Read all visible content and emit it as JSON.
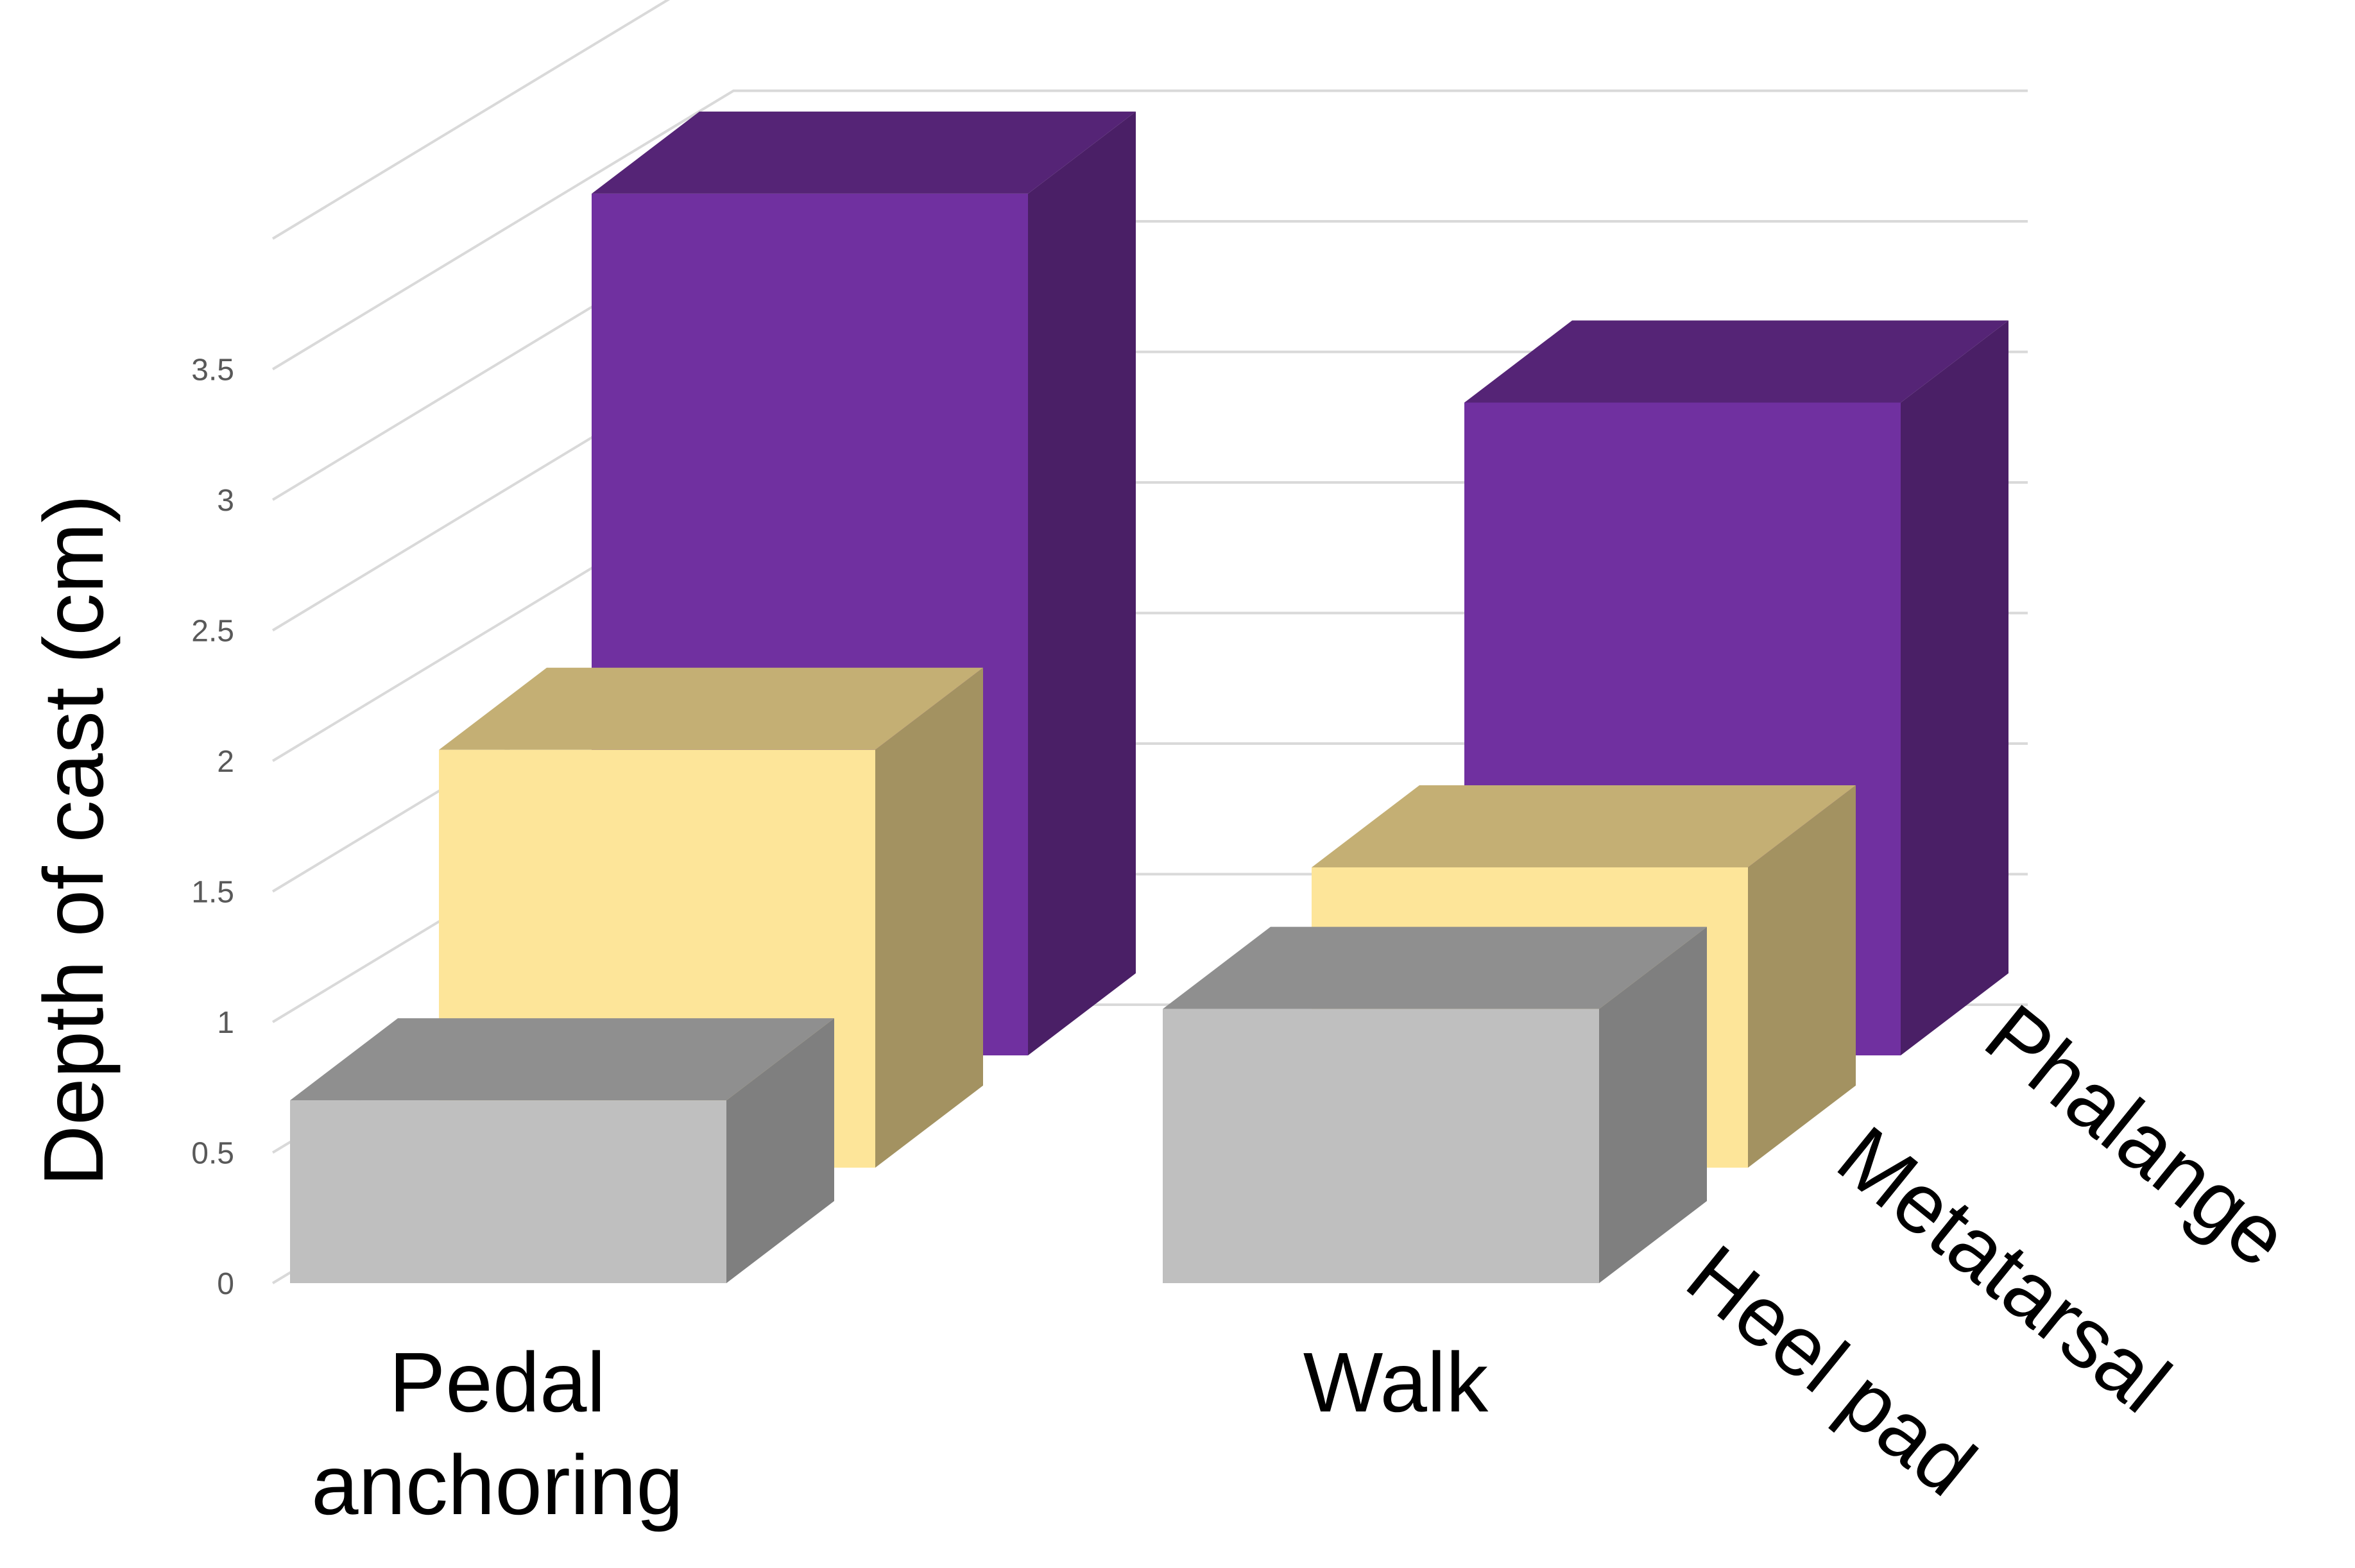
{
  "chart_data": {
    "type": "bar",
    "variant": "3d-column",
    "ylabel": "Depth of cast (cm)",
    "xlabel": "",
    "title": "",
    "categories": [
      "Pedal\nanchoring",
      "Walk"
    ],
    "series": [
      {
        "name": "Heel pad",
        "values": [
          0.7,
          1.05
        ],
        "color": "#bfbfbf",
        "top_color": "#8f8f8f",
        "side_color": "#7f7f7f"
      },
      {
        "name": "Metatarsal",
        "values": [
          1.6,
          1.15
        ],
        "color": "#fde599",
        "top_color": "#c4af74",
        "side_color": "#a39261"
      },
      {
        "name": "Phalange",
        "values": [
          3.3,
          2.5
        ],
        "color": "#7030a0",
        "top_color": "#552476",
        "side_color": "#4a1f66"
      }
    ],
    "ylim": [
      0,
      4
    ],
    "yticks": [
      "0",
      "0.5",
      "1",
      "1.5",
      "2",
      "2.5",
      "3",
      "3.5"
    ],
    "grid": true,
    "legend": "series labels along depth axis, right side"
  }
}
